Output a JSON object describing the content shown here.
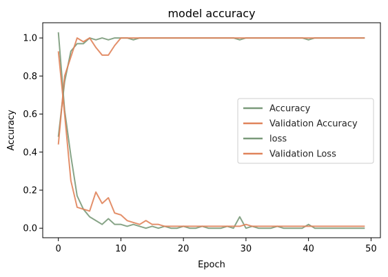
{
  "chart_data": {
    "type": "line",
    "title": "model accuracy",
    "xlabel": "Epoch",
    "ylabel": "Accuracy",
    "xlim": [
      -2.5,
      51.5
    ],
    "ylim": [
      -0.05,
      1.08
    ],
    "xticks": [
      0,
      10,
      20,
      30,
      40,
      50
    ],
    "xtick_labels": [
      "0",
      "10",
      "20",
      "30",
      "40",
      "50"
    ],
    "yticks": [
      0.0,
      0.2,
      0.4,
      0.6,
      0.8,
      1.0
    ],
    "ytick_labels": [
      "0.0",
      "0.2",
      "0.4",
      "0.6",
      "0.8",
      "1.0"
    ],
    "grid": false,
    "legend_position": "center-right",
    "x": [
      0,
      1,
      2,
      3,
      4,
      5,
      6,
      7,
      8,
      9,
      10,
      11,
      12,
      13,
      14,
      15,
      16,
      17,
      18,
      19,
      20,
      21,
      22,
      23,
      24,
      25,
      26,
      27,
      28,
      29,
      30,
      31,
      32,
      33,
      34,
      35,
      36,
      37,
      38,
      39,
      40,
      41,
      42,
      43,
      44,
      45,
      46,
      47,
      48,
      49
    ],
    "series": [
      {
        "name": "Accuracy",
        "color": "#7a9a7a",
        "values": [
          0.48,
          0.77,
          0.93,
          0.97,
          0.97,
          1.0,
          0.99,
          1.0,
          0.99,
          1.0,
          1.0,
          1.0,
          0.99,
          1.0,
          1.0,
          1.0,
          1.0,
          1.0,
          1.0,
          1.0,
          1.0,
          1.0,
          1.0,
          1.0,
          1.0,
          1.0,
          1.0,
          1.0,
          1.0,
          0.99,
          1.0,
          1.0,
          1.0,
          1.0,
          1.0,
          1.0,
          1.0,
          1.0,
          1.0,
          1.0,
          0.99,
          1.0,
          1.0,
          1.0,
          1.0,
          1.0,
          1.0,
          1.0,
          1.0,
          1.0
        ]
      },
      {
        "name": "Validation Accuracy",
        "color": "#e0835a",
        "values": [
          0.44,
          0.8,
          0.9,
          1.0,
          0.98,
          1.0,
          0.95,
          0.91,
          0.91,
          0.96,
          1.0,
          1.0,
          1.0,
          1.0,
          1.0,
          1.0,
          1.0,
          1.0,
          1.0,
          1.0,
          1.0,
          1.0,
          1.0,
          1.0,
          1.0,
          1.0,
          1.0,
          1.0,
          1.0,
          1.0,
          1.0,
          1.0,
          1.0,
          1.0,
          1.0,
          1.0,
          1.0,
          1.0,
          1.0,
          1.0,
          1.0,
          1.0,
          1.0,
          1.0,
          1.0,
          1.0,
          1.0,
          1.0,
          1.0,
          1.0
        ]
      },
      {
        "name": "loss",
        "color": "#7a9a7a",
        "values": [
          1.03,
          0.62,
          0.38,
          0.17,
          0.1,
          0.06,
          0.04,
          0.02,
          0.05,
          0.02,
          0.02,
          0.01,
          0.02,
          0.01,
          0.0,
          0.01,
          0.0,
          0.01,
          0.0,
          0.0,
          0.01,
          0.0,
          0.0,
          0.01,
          0.0,
          0.0,
          0.0,
          0.01,
          0.0,
          0.06,
          0.0,
          0.01,
          0.0,
          0.0,
          0.0,
          0.01,
          0.0,
          0.0,
          0.0,
          0.0,
          0.02,
          0.0,
          0.0,
          0.0,
          0.0,
          0.0,
          0.0,
          0.0,
          0.0,
          0.0
        ]
      },
      {
        "name": "Validation Loss",
        "color": "#e0835a",
        "values": [
          0.93,
          0.6,
          0.25,
          0.11,
          0.1,
          0.09,
          0.19,
          0.13,
          0.16,
          0.08,
          0.07,
          0.04,
          0.03,
          0.02,
          0.04,
          0.02,
          0.02,
          0.01,
          0.01,
          0.01,
          0.01,
          0.01,
          0.01,
          0.01,
          0.01,
          0.01,
          0.01,
          0.01,
          0.01,
          0.01,
          0.02,
          0.01,
          0.01,
          0.01,
          0.01,
          0.01,
          0.01,
          0.01,
          0.01,
          0.01,
          0.01,
          0.01,
          0.01,
          0.01,
          0.01,
          0.01,
          0.01,
          0.01,
          0.01,
          0.01
        ]
      }
    ]
  }
}
